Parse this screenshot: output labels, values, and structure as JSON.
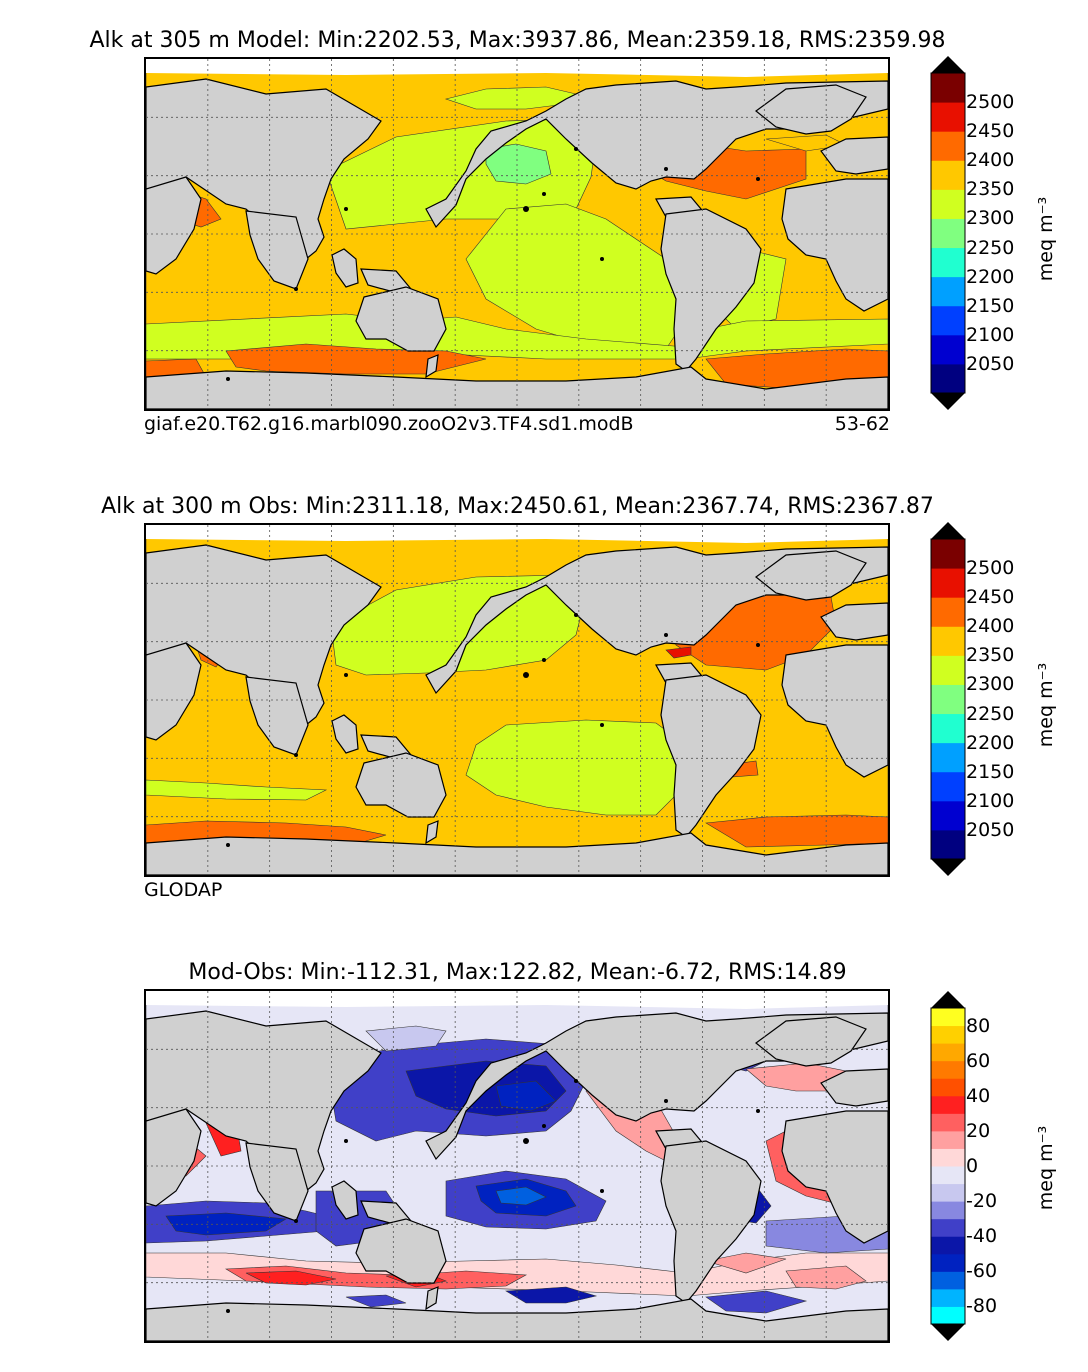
{
  "panels": [
    {
      "title": "Alk at 305 m Model: Min:2202.53, Max:3937.86, Mean:2359.18, RMS:2359.98",
      "subtitle_left": "giaf.e20.T62.g16.marbl090.zooO2v3.TF4.sd1.modB",
      "subtitle_right": "53-62",
      "colorbar_label": "meq m⁻³",
      "colorbar_ticks": [
        "2500",
        "2450",
        "2400",
        "2350",
        "2300",
        "2250",
        "2200",
        "2150",
        "2100",
        "2050"
      ]
    },
    {
      "title": "Alk at 300 m Obs: Min:2311.18, Max:2450.61, Mean:2367.74, RMS:2367.87",
      "subtitle_left": "GLODAP",
      "subtitle_right": "",
      "colorbar_label": "meq m⁻³",
      "colorbar_ticks": [
        "2500",
        "2450",
        "2400",
        "2350",
        "2300",
        "2250",
        "2200",
        "2150",
        "2100",
        "2050"
      ]
    },
    {
      "title": "Mod-Obs: Min:-112.31, Max:122.82, Mean:-6.72, RMS:14.89",
      "subtitle_left": "",
      "subtitle_right": "",
      "colorbar_label": "meq m⁻³",
      "colorbar_ticks": [
        "80",
        "60",
        "40",
        "20",
        "0",
        "-20",
        "-40",
        "-60",
        "-80"
      ]
    }
  ],
  "chart_data": [
    {
      "type": "heatmap",
      "title": "Alk at 305 m Model: Min:2202.53, Max:3937.86, Mean:2359.18, RMS:2359.98",
      "variable": "Alkalinity",
      "depth_m": 305,
      "stats": {
        "min": 2202.53,
        "max": 3937.86,
        "mean": 2359.18,
        "rms": 2359.98
      },
      "colorbar": {
        "label": "meq m⁻³",
        "levels": [
          2000,
          2050,
          2100,
          2150,
          2200,
          2250,
          2300,
          2350,
          2400,
          2450,
          2500,
          2550
        ],
        "colors": [
          "#000080",
          "#0000d0",
          "#0040ff",
          "#00a0ff",
          "#20ffd0",
          "#80ff80",
          "#d0ff20",
          "#ffc800",
          "#ff6a00",
          "#e81000",
          "#7a0000"
        ]
      },
      "run": "giaf.e20.T62.g16.marbl090.zooO2v3.TF4.sd1.modB",
      "years": "53-62"
    },
    {
      "type": "heatmap",
      "title": "Alk at 300 m Obs: Min:2311.18, Max:2450.61, Mean:2367.74, RMS:2367.87",
      "variable": "Alkalinity",
      "depth_m": 300,
      "stats": {
        "min": 2311.18,
        "max": 2450.61,
        "mean": 2367.74,
        "rms": 2367.87
      },
      "colorbar": {
        "label": "meq m⁻³",
        "levels": [
          2000,
          2050,
          2100,
          2150,
          2200,
          2250,
          2300,
          2350,
          2400,
          2450,
          2500,
          2550
        ],
        "colors": [
          "#000080",
          "#0000d0",
          "#0040ff",
          "#00a0ff",
          "#20ffd0",
          "#80ff80",
          "#d0ff20",
          "#ffc800",
          "#ff6a00",
          "#e81000",
          "#7a0000"
        ]
      },
      "source": "GLODAP"
    },
    {
      "type": "heatmap",
      "title": "Mod-Obs: Min:-112.31, Max:122.82, Mean:-6.72, RMS:14.89",
      "variable": "Alkalinity difference",
      "stats": {
        "min": -112.31,
        "max": 122.82,
        "mean": -6.72,
        "rms": 14.89
      },
      "colorbar": {
        "label": "meq m⁻³",
        "levels": [
          -90,
          -80,
          -70,
          -60,
          -50,
          -40,
          -30,
          -20,
          -10,
          0,
          10,
          20,
          30,
          40,
          50,
          60,
          70,
          80,
          90
        ],
        "colors": [
          "#00ffff",
          "#00b4ff",
          "#0060e0",
          "#0022c0",
          "#0b16a8",
          "#4040c8",
          "#8888e0",
          "#c8c8ef",
          "#e6e6f6",
          "#ffd8d8",
          "#ffa0a0",
          "#ff6060",
          "#ff2020",
          "#ff5000",
          "#ff7a00",
          "#ffa800",
          "#ffd000",
          "#ffff20"
        ]
      }
    }
  ],
  "colors": {
    "land": "#d0d0d0",
    "grid": "#555555",
    "frame": "#000000"
  }
}
